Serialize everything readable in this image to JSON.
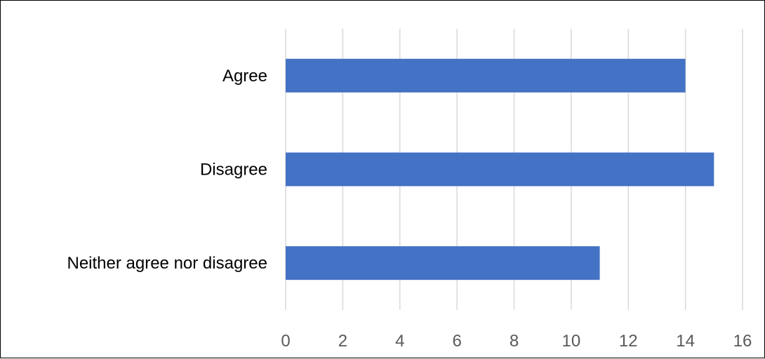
{
  "chart_data": {
    "type": "bar",
    "orientation": "horizontal",
    "title": "",
    "xlabel": "",
    "ylabel": "",
    "categories": [
      "Agree",
      "Disagree",
      "Neither agree nor disagree"
    ],
    "values": [
      14,
      15,
      11
    ],
    "xlim": [
      0,
      16
    ],
    "x_ticks": [
      "0",
      "2",
      "4",
      "6",
      "8",
      "10",
      "12",
      "14",
      "16"
    ],
    "grid": "vertical",
    "legend": "none",
    "bar_color": "#4472C4",
    "grid_color": "#D9D9D9",
    "tick_label_color": "#595959"
  }
}
